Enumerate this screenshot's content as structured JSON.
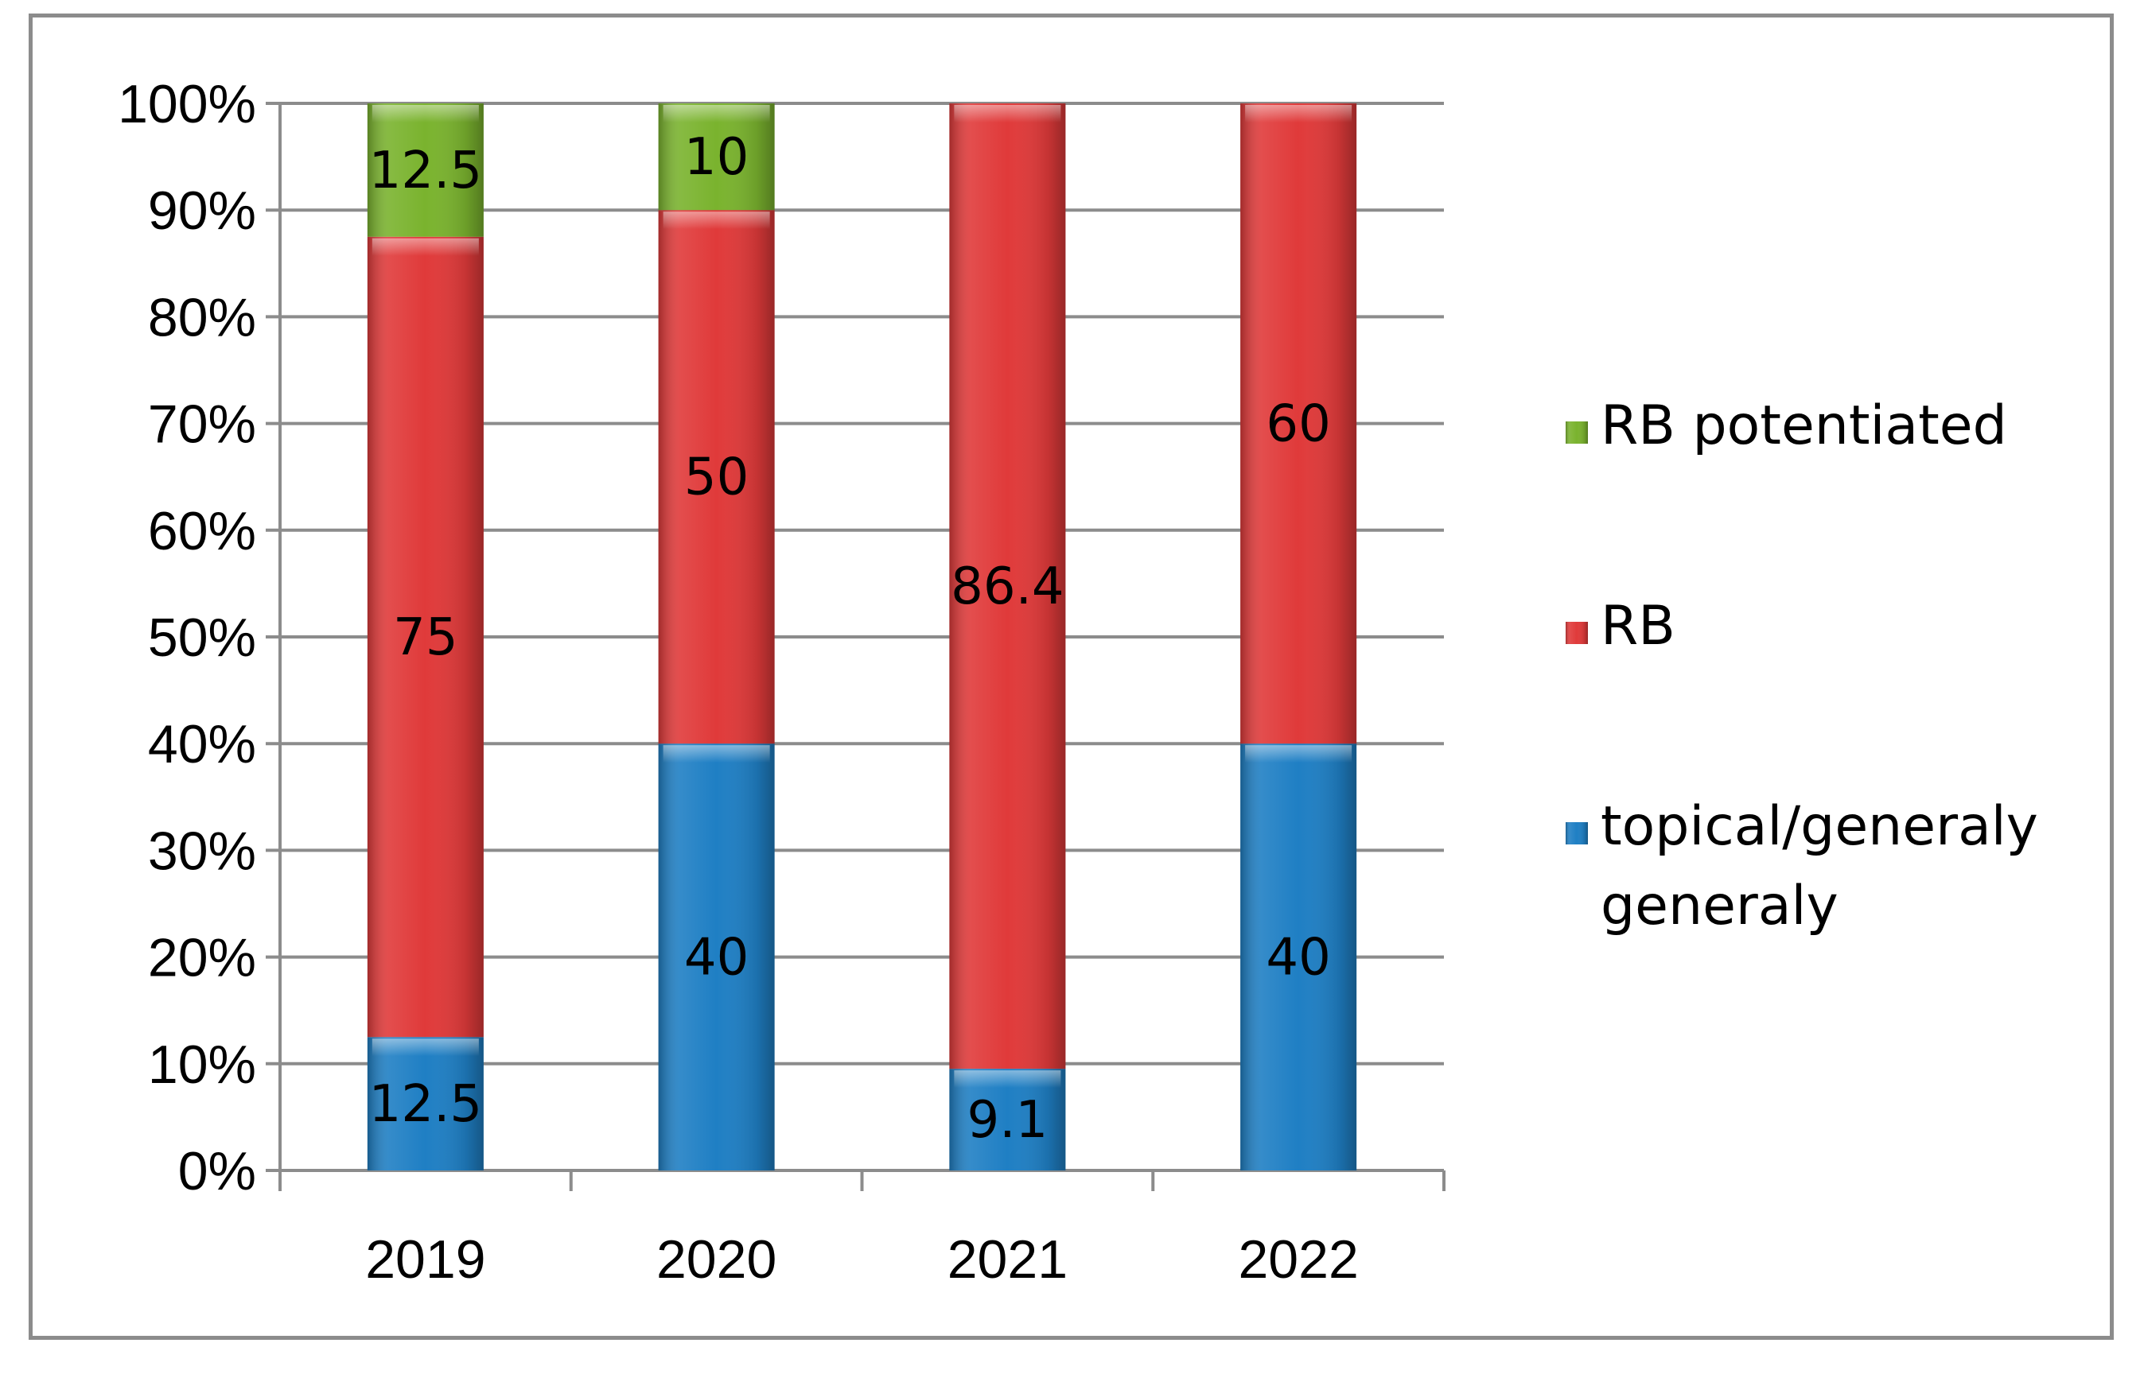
{
  "chart_data": {
    "type": "bar",
    "stacked": "percent",
    "categories": [
      "2019",
      "2020",
      "2021",
      "2022"
    ],
    "series": [
      {
        "name": "topical/generaly generaly",
        "values": [
          12.5,
          40,
          9.1,
          40
        ],
        "color": "#1f7fc4",
        "labels": [
          "12.5",
          "40",
          "9.1",
          "40"
        ]
      },
      {
        "name": "RB",
        "values": [
          75,
          50,
          86.4,
          60
        ],
        "color": "#e03a3a",
        "labels": [
          "75",
          "50",
          "86.4",
          "60"
        ]
      },
      {
        "name": "RB potentiated",
        "values": [
          12.5,
          10,
          0,
          0
        ],
        "color": "#7ab32e",
        "labels": [
          "12.5",
          "10",
          "",
          ""
        ]
      }
    ],
    "legend": [
      {
        "lines": [
          "RB potentiated"
        ],
        "color": "#7ab32e"
      },
      {
        "lines": [
          "RB"
        ],
        "color": "#e03a3a"
      },
      {
        "lines": [
          "topical/generaly",
          "generaly"
        ],
        "color": "#1f7fc4"
      }
    ],
    "ylim": [
      0,
      100
    ],
    "yticks": [
      "0%",
      "10%",
      "20%",
      "30%",
      "40%",
      "50%",
      "60%",
      "70%",
      "80%",
      "90%",
      "100%"
    ],
    "grid": true,
    "legend_position": "right",
    "xlabel": "",
    "ylabel": "",
    "title": ""
  }
}
